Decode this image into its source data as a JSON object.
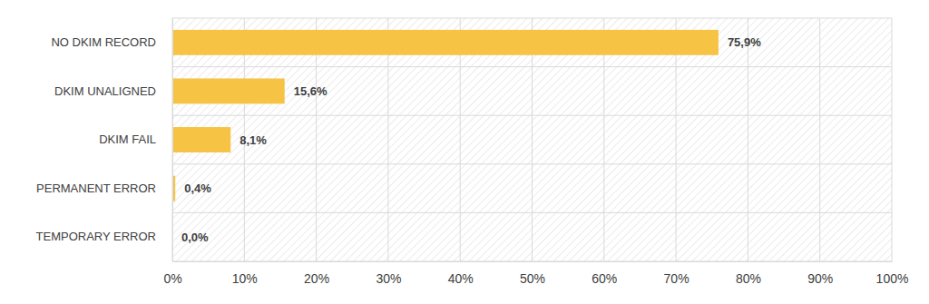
{
  "chart_data": {
    "type": "bar",
    "orientation": "horizontal",
    "categories": [
      "NO DKIM RECORD",
      "DKIM UNALIGNED",
      "DKIM FAIL",
      "PERMANENT ERROR",
      "TEMPORARY ERROR"
    ],
    "values": [
      75.9,
      15.6,
      8.1,
      0.4,
      0.0
    ],
    "value_labels": [
      "75,9%",
      "15,6%",
      "8,1%",
      "0,4%",
      "0,0%"
    ],
    "color": "#f6c344",
    "xlim": [
      0,
      100
    ],
    "xticks": [
      {
        "value": 0,
        "label": "0%"
      },
      {
        "value": 10,
        "label": "10%"
      },
      {
        "value": 20,
        "label": "20%"
      },
      {
        "value": 30,
        "label": "30%"
      },
      {
        "value": 40,
        "label": "40%"
      },
      {
        "value": 50,
        "label": "50%"
      },
      {
        "value": 60,
        "label": "60%"
      },
      {
        "value": 70,
        "label": "70%"
      },
      {
        "value": 80,
        "label": "80%"
      },
      {
        "value": 90,
        "label": "90%"
      },
      {
        "value": 100,
        "label": "100%"
      }
    ],
    "grid": true,
    "data_labels": true
  }
}
